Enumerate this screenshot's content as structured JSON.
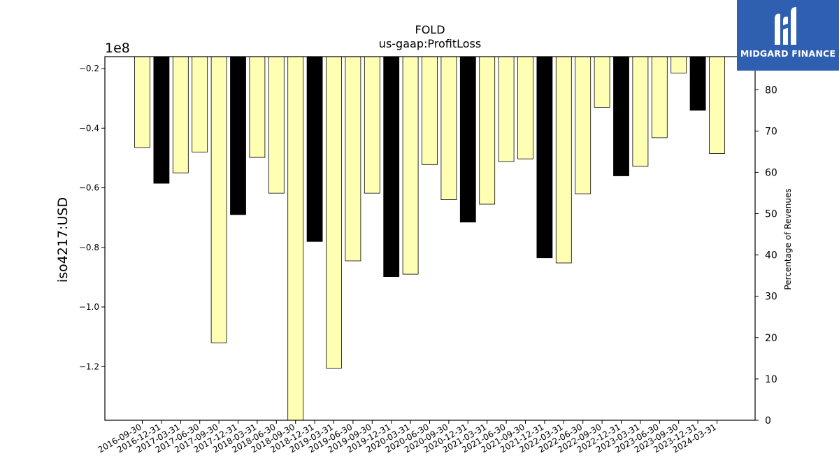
{
  "chart_data": {
    "type": "bar",
    "title": "FOLD",
    "subtitle": "us-gaap:ProfitLoss",
    "ylabel": "iso4217:USD",
    "y_offset_label": "1e8",
    "y2label": "Percentage of Revenues",
    "categories": [
      "2016-09-30",
      "2016-12-31",
      "2017-03-31",
      "2017-06-30",
      "2017-09-30",
      "2017-12-31",
      "2018-03-31",
      "2018-06-30",
      "2018-09-30",
      "2018-12-31",
      "2019-03-31",
      "2019-06-30",
      "2019-09-30",
      "2019-12-31",
      "2020-03-31",
      "2020-06-30",
      "2020-09-30",
      "2020-12-31",
      "2021-03-31",
      "2021-06-30",
      "2021-09-30",
      "2021-12-31",
      "2022-03-31",
      "2022-06-30",
      "2022-09-30",
      "2022-12-31",
      "2023-03-31",
      "2023-06-30",
      "2023-09-30",
      "2023-12-31",
      "2024-03-31"
    ],
    "values": [
      -46500000,
      -58500000,
      -55000000,
      -48000000,
      -112000000,
      -69000000,
      -49800000,
      -61800000,
      -139000000,
      -78000000,
      -120500000,
      -84500000,
      -61800000,
      -89800000,
      -89000000,
      -52200000,
      -64000000,
      -71500000,
      -65500000,
      -51200000,
      -50300000,
      -83500000,
      -85200000,
      -62000000,
      -33000000,
      -56000000,
      -52800000,
      -43200000,
      -21500000,
      -34000000,
      -48500000
    ],
    "highlight": [
      false,
      true,
      false,
      false,
      false,
      true,
      false,
      false,
      false,
      true,
      false,
      false,
      false,
      true,
      false,
      false,
      false,
      true,
      false,
      false,
      false,
      true,
      false,
      false,
      false,
      true,
      false,
      false,
      false,
      true,
      false
    ],
    "ylim": [
      -138000000,
      -16000000
    ],
    "y_ticks": [
      -0.2,
      -0.4,
      -0.6,
      -0.8,
      -1.0,
      -1.2
    ],
    "y2lim": [
      0,
      88
    ],
    "y2_ticks": [
      0,
      10,
      20,
      30,
      40,
      50,
      60,
      70,
      80
    ],
    "colors": {
      "quarter_bar": "#ffffb3",
      "annual_bar": "#000000",
      "edge": "#000000"
    }
  },
  "logo": {
    "text": "MIDGARD FINANCE",
    "background": "#2f5fb0"
  }
}
